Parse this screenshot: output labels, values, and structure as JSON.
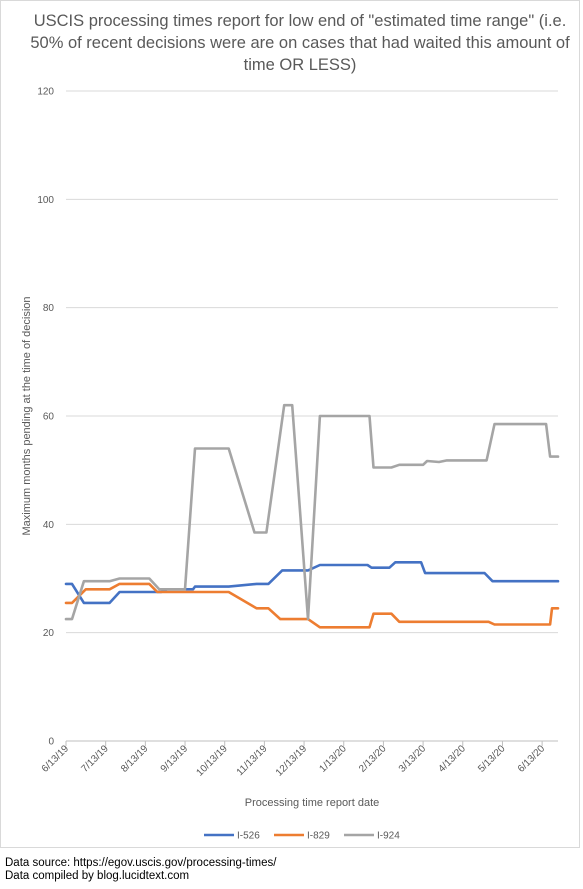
{
  "chart_data": {
    "type": "line",
    "title": "USCIS processing times report for low end of \"estimated time range\" (i.e. 50% of recent decisions were are on cases that had waited this amount of time OR LESS)",
    "xlabel": "Processing time report date",
    "ylabel": "Maximum months pending at the time of decision",
    "ylim": [
      0,
      120
    ],
    "yticks": [
      0,
      20,
      40,
      60,
      80,
      100,
      120
    ],
    "xlim": [
      0,
      12.4
    ],
    "xticks": [
      {
        "x": 0,
        "label": "6/13/19"
      },
      {
        "x": 1,
        "label": "7/13/19"
      },
      {
        "x": 2,
        "label": "8/13/19"
      },
      {
        "x": 3,
        "label": "9/13/19"
      },
      {
        "x": 4,
        "label": "10/13/19"
      },
      {
        "x": 5,
        "label": "11/13/19"
      },
      {
        "x": 6,
        "label": "12/13/19"
      },
      {
        "x": 7,
        "label": "1/13/20"
      },
      {
        "x": 8,
        "label": "2/13/20"
      },
      {
        "x": 9,
        "label": "3/13/20"
      },
      {
        "x": 10,
        "label": "4/13/20"
      },
      {
        "x": 11,
        "label": "5/13/20"
      },
      {
        "x": 12,
        "label": "6/13/20"
      }
    ],
    "grid": true,
    "legend_position": "bottom",
    "series": [
      {
        "name": "I-526",
        "color": "#4472C4",
        "points": [
          [
            0,
            29
          ],
          [
            0.15,
            29
          ],
          [
            0.45,
            25.5
          ],
          [
            1.1,
            25.5
          ],
          [
            1.35,
            27.5
          ],
          [
            2.4,
            27.5
          ],
          [
            2.55,
            28
          ],
          [
            3.2,
            28
          ],
          [
            3.25,
            28.5
          ],
          [
            4.1,
            28.5
          ],
          [
            4.8,
            29
          ],
          [
            5.1,
            29
          ],
          [
            5.45,
            31.5
          ],
          [
            6.1,
            31.5
          ],
          [
            6.4,
            32.5
          ],
          [
            7.6,
            32.5
          ],
          [
            7.7,
            32
          ],
          [
            8.15,
            32
          ],
          [
            8.3,
            33
          ],
          [
            8.95,
            33
          ],
          [
            9.05,
            31
          ],
          [
            10.55,
            31
          ],
          [
            10.75,
            29.5
          ],
          [
            12.4,
            29.5
          ]
        ]
      },
      {
        "name": "I-829",
        "color": "#ED7D31",
        "points": [
          [
            0,
            25.5
          ],
          [
            0.15,
            25.5
          ],
          [
            0.5,
            28
          ],
          [
            1.1,
            28
          ],
          [
            1.35,
            29
          ],
          [
            2.1,
            29
          ],
          [
            2.3,
            27.5
          ],
          [
            4.1,
            27.5
          ],
          [
            4.8,
            24.5
          ],
          [
            5.1,
            24.5
          ],
          [
            5.4,
            22.5
          ],
          [
            6.1,
            22.5
          ],
          [
            6.4,
            21
          ],
          [
            7.65,
            21
          ],
          [
            7.75,
            23.5
          ],
          [
            8.2,
            23.5
          ],
          [
            8.4,
            22
          ],
          [
            10.65,
            22
          ],
          [
            10.8,
            21.5
          ],
          [
            12.2,
            21.5
          ],
          [
            12.25,
            24.5
          ],
          [
            12.4,
            24.5
          ]
        ]
      },
      {
        "name": "I-924",
        "color": "#A5A5A5",
        "points": [
          [
            0,
            22.5
          ],
          [
            0.15,
            22.5
          ],
          [
            0.45,
            29.5
          ],
          [
            1.1,
            29.5
          ],
          [
            1.35,
            30
          ],
          [
            2.1,
            30
          ],
          [
            2.35,
            28
          ],
          [
            3.0,
            28
          ],
          [
            3.25,
            54
          ],
          [
            4.1,
            54
          ],
          [
            4.75,
            38.5
          ],
          [
            5.05,
            38.5
          ],
          [
            5.5,
            62
          ],
          [
            5.7,
            62
          ],
          [
            6.1,
            22.5
          ],
          [
            6.4,
            60
          ],
          [
            7.65,
            60
          ],
          [
            7.75,
            50.5
          ],
          [
            8.2,
            50.5
          ],
          [
            8.4,
            51
          ],
          [
            9.0,
            51
          ],
          [
            9.1,
            51.7
          ],
          [
            9.4,
            51.5
          ],
          [
            9.6,
            51.8
          ],
          [
            10.6,
            51.8
          ],
          [
            10.8,
            58.5
          ],
          [
            12.1,
            58.5
          ],
          [
            12.2,
            52.5
          ],
          [
            12.4,
            52.5
          ]
        ]
      }
    ]
  },
  "footer": {
    "source": "Data source: https://egov.uscis.gov/processing-times/",
    "compiled": "Data compiled by blog.lucidtext.com"
  }
}
